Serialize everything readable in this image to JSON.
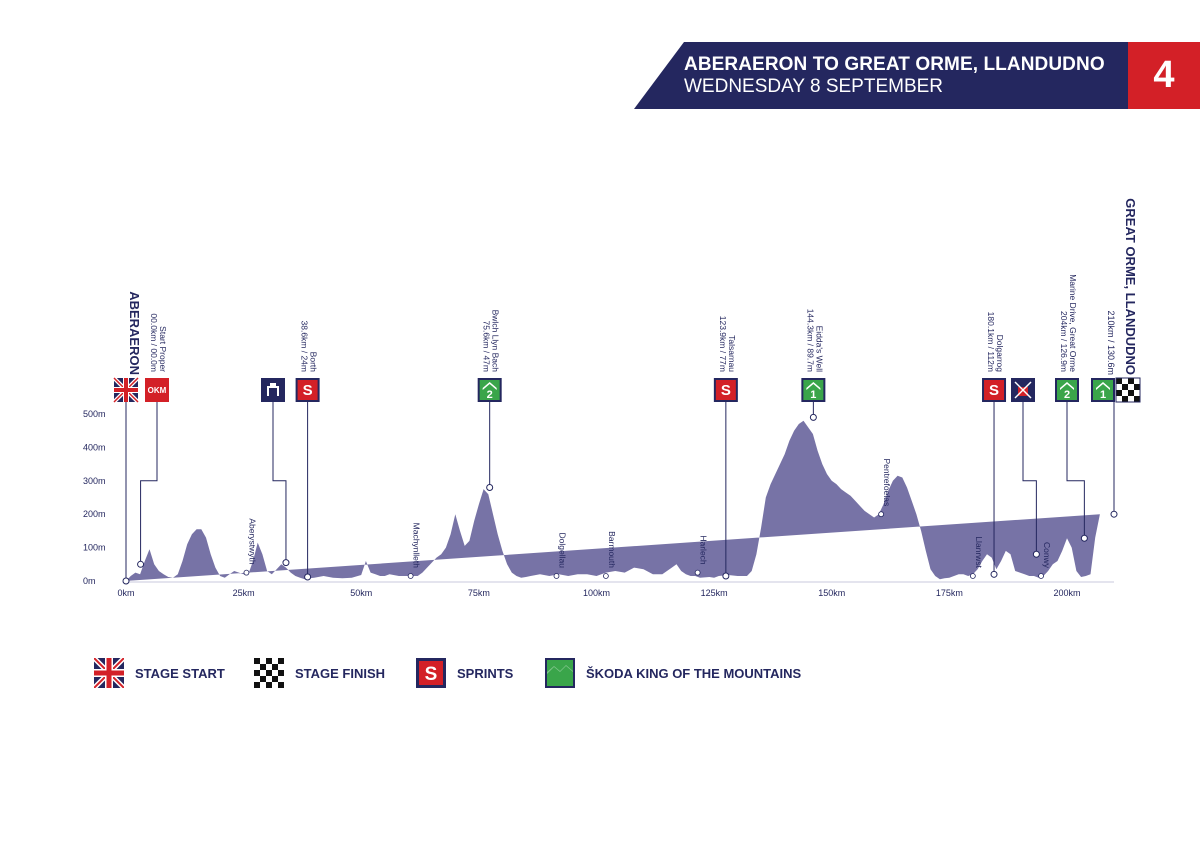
{
  "header": {
    "title": "ABERAERON TO GREAT ORME, LLANDUDNO",
    "subtitle": "WEDNESDAY 8 SEPTEMBER",
    "stage_number": "4"
  },
  "colors": {
    "navy": "#24275f",
    "red": "#d32027",
    "green": "#3aa54a",
    "profile": "#7773a6"
  },
  "legend": [
    {
      "icon": "union-jack-icon",
      "label": "STAGE START"
    },
    {
      "icon": "checkered-flag-icon",
      "label": "STAGE FINISH"
    },
    {
      "icon": "sprint-icon",
      "label": "SPRINTS"
    },
    {
      "icon": "king-of-mountains-icon",
      "label": "ŠKODA KING OF THE MOUNTAINS"
    }
  ],
  "chart_data": {
    "type": "area",
    "title": "",
    "xlabel": "",
    "ylabel": "",
    "xlim": [
      0,
      210
    ],
    "ylim": [
      0,
      500
    ],
    "x_ticks": [
      {
        "value": 0,
        "label": "0km"
      },
      {
        "value": 25,
        "label": "25km"
      },
      {
        "value": 50,
        "label": "50km"
      },
      {
        "value": 75,
        "label": "75km"
      },
      {
        "value": 100,
        "label": "100km"
      },
      {
        "value": 125,
        "label": "125km"
      },
      {
        "value": 150,
        "label": "150km"
      },
      {
        "value": 175,
        "label": "175km"
      },
      {
        "value": 200,
        "label": "200km"
      }
    ],
    "y_ticks": [
      {
        "value": 0,
        "label": "0m"
      },
      {
        "value": 100,
        "label": "100m"
      },
      {
        "value": 200,
        "label": "200m"
      },
      {
        "value": 300,
        "label": "300m"
      },
      {
        "value": 400,
        "label": "400m"
      },
      {
        "value": 500,
        "label": "500m"
      }
    ],
    "profile": {
      "x": [
        0,
        1,
        2,
        3,
        4,
        5,
        6,
        7,
        8,
        9,
        10,
        11,
        12,
        13,
        14,
        15,
        16,
        17,
        18,
        19,
        20,
        21,
        22,
        23,
        24,
        25,
        26,
        27,
        28,
        29,
        30,
        31,
        32,
        33,
        34,
        35,
        36,
        37,
        38,
        39,
        40,
        42,
        44,
        46,
        48,
        50,
        51,
        52,
        53,
        54,
        55,
        56,
        58,
        60,
        62,
        63,
        64,
        65,
        66,
        67,
        68,
        69,
        70,
        71,
        72,
        73,
        74,
        75,
        76,
        77,
        78,
        79,
        80,
        81,
        82,
        83,
        84,
        85,
        86,
        88,
        90,
        92,
        94,
        96,
        98,
        100,
        102,
        104,
        106,
        108,
        110,
        112,
        114,
        116,
        117,
        118,
        119,
        120,
        121,
        122,
        124,
        125,
        126,
        128,
        130,
        132,
        133,
        134,
        135,
        136,
        137,
        138,
        139,
        140,
        141,
        142,
        143,
        144,
        145,
        146,
        147,
        148,
        149,
        150,
        151,
        152,
        153,
        154,
        155,
        156,
        157,
        158,
        159,
        160,
        161,
        162,
        163,
        164,
        165,
        166,
        167,
        168,
        169,
        170,
        171,
        172,
        173,
        174,
        175,
        176,
        177,
        178,
        179,
        180,
        181,
        182,
        183,
        184,
        185,
        186,
        187,
        188,
        189,
        190,
        191,
        192,
        193,
        194,
        195,
        196,
        197,
        198,
        199,
        200,
        201,
        202,
        203,
        204,
        205,
        206,
        207,
        208,
        209,
        210
      ],
      "elevation": [
        0,
        15,
        25,
        20,
        60,
        95,
        50,
        30,
        20,
        12,
        10,
        20,
        60,
        110,
        140,
        155,
        155,
        130,
        80,
        40,
        15,
        10,
        20,
        30,
        25,
        20,
        20,
        60,
        115,
        80,
        30,
        20,
        35,
        50,
        40,
        25,
        15,
        10,
        5,
        8,
        10,
        15,
        10,
        8,
        10,
        18,
        60,
        25,
        20,
        15,
        15,
        20,
        15,
        15,
        15,
        25,
        40,
        55,
        70,
        80,
        100,
        140,
        200,
        150,
        105,
        120,
        180,
        230,
        275,
        260,
        200,
        140,
        90,
        50,
        25,
        15,
        10,
        12,
        15,
        20,
        15,
        20,
        15,
        20,
        20,
        15,
        25,
        30,
        25,
        40,
        35,
        20,
        20,
        40,
        50,
        30,
        20,
        15,
        15,
        10,
        12,
        10,
        15,
        18,
        15,
        15,
        30,
        80,
        160,
        250,
        290,
        320,
        350,
        380,
        420,
        450,
        470,
        480,
        460,
        440,
        390,
        350,
        320,
        300,
        290,
        275,
        265,
        255,
        240,
        225,
        210,
        200,
        190,
        200,
        230,
        270,
        300,
        315,
        310,
        280,
        240,
        200,
        150,
        90,
        35,
        15,
        5,
        8,
        10,
        15,
        20,
        20,
        15,
        20,
        35,
        60,
        80,
        70,
        35,
        60,
        90,
        80,
        30,
        25,
        20,
        15,
        15,
        10,
        15,
        30,
        50,
        60,
        90,
        128,
        100,
        30,
        12,
        15,
        20,
        130,
        200
      ]
    },
    "annotations": [
      {
        "km": 0,
        "elev": 0,
        "label": "ABERAERON",
        "sub": "",
        "badge": "flag",
        "style": "endpoint"
      },
      {
        "km": 3.1,
        "elev": 50,
        "label": "Start Proper",
        "sub": "00.0km / 00.0m",
        "badge": "OKM",
        "style": "label"
      },
      {
        "km": 34,
        "elev": 55,
        "label": "",
        "sub": "",
        "badge": "feed",
        "style": "label"
      },
      {
        "km": 38.6,
        "elev": 12,
        "label": "Borth",
        "sub": "38.6km / 24m",
        "badge": "sprint",
        "style": "label"
      },
      {
        "km": 77.3,
        "elev": 280,
        "label": "Bwlch Llyn Bach",
        "sub": "75.6km / 47m",
        "badge": "kom2",
        "style": "label"
      },
      {
        "km": 127.5,
        "elev": 15,
        "label": "Talsarnau",
        "sub": "123.9km / 77m",
        "badge": "sprint",
        "style": "label"
      },
      {
        "km": 146.1,
        "elev": 490,
        "label": "Eidda's Well",
        "sub": "144.3km / 89.7m",
        "badge": "kom1",
        "style": "label"
      },
      {
        "km": 184.5,
        "elev": 20,
        "label": "Dolgarrog",
        "sub": "180.1km / 112m",
        "badge": "sprint",
        "style": "label"
      },
      {
        "km": 193.5,
        "elev": 80,
        "label": "",
        "sub": "",
        "badge": "nofeed",
        "style": "label"
      },
      {
        "km": 203.7,
        "elev": 128,
        "label": "Marine Drive, Great Orme",
        "sub": "204km / 126.9m",
        "badge": "kom2",
        "style": "label"
      },
      {
        "km": 210,
        "elev": 200,
        "label": "GREAT ORME, LLANDUDNO",
        "sub": "210km / 130.6m",
        "badge": "kom1-finish",
        "style": "endpoint"
      }
    ],
    "places": [
      {
        "km": 25.6,
        "elev": 25,
        "label": "Aberystwyth"
      },
      {
        "km": 60.5,
        "elev": 15,
        "label": "Machynlleth"
      },
      {
        "km": 91.5,
        "elev": 15,
        "label": "Dolgellau"
      },
      {
        "km": 102,
        "elev": 15,
        "label": "Barmouth"
      },
      {
        "km": 121.5,
        "elev": 25,
        "label": "Harlech"
      },
      {
        "km": 160.5,
        "elev": 200,
        "label": "Pentrefoelas"
      },
      {
        "km": 180,
        "elev": 15,
        "label": "Llanrwst"
      },
      {
        "km": 194.5,
        "elev": 15,
        "label": "Conwy"
      }
    ]
  }
}
